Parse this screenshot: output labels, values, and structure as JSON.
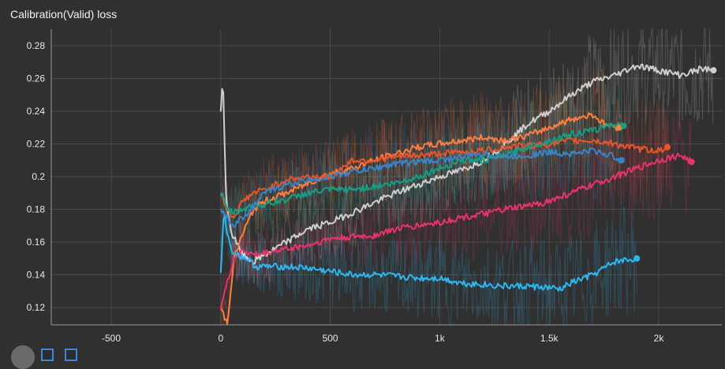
{
  "chart_data": {
    "title": "Calibration(Valid) loss",
    "type": "line",
    "xlim": [
      -750,
      2300
    ],
    "ylim": [
      0.11,
      0.29
    ],
    "x_ticks": [
      -500,
      0,
      500,
      1000,
      1500,
      2000
    ],
    "x_tick_labels": [
      "-500",
      "0",
      "500",
      "1k",
      "1.5k",
      "2k"
    ],
    "y_ticks": [
      0.12,
      0.14,
      0.16,
      0.18,
      0.2,
      0.22,
      0.24,
      0.26,
      0.28
    ],
    "y_tick_labels": [
      "0.12",
      "0.14",
      "0.16",
      "0.18",
      "0.2",
      "0.22",
      "0.24",
      "0.26",
      "0.28"
    ],
    "grid": true,
    "series": [
      {
        "color": "#cfcfcf",
        "end_marker": true,
        "x": [
          0,
          10,
          25,
          50,
          100,
          150,
          200,
          300,
          400,
          500,
          600,
          700,
          800,
          900,
          1000,
          1100,
          1200,
          1300,
          1400,
          1500,
          1600,
          1700,
          1800,
          1900,
          2000,
          2100,
          2200,
          2250
        ],
        "y": [
          0.24,
          0.26,
          0.185,
          0.165,
          0.152,
          0.148,
          0.152,
          0.16,
          0.168,
          0.172,
          0.178,
          0.184,
          0.19,
          0.195,
          0.2,
          0.204,
          0.21,
          0.22,
          0.232,
          0.24,
          0.25,
          0.258,
          0.262,
          0.268,
          0.265,
          0.262,
          0.266,
          0.265
        ]
      },
      {
        "color": "#ff7f40",
        "end_marker": true,
        "x": [
          0,
          30,
          60,
          100,
          150,
          200,
          300,
          400,
          500,
          600,
          700,
          800,
          900,
          1000,
          1100,
          1200,
          1300,
          1400,
          1500,
          1600,
          1700,
          1750,
          1820
        ],
        "y": [
          0.12,
          0.11,
          0.15,
          0.165,
          0.18,
          0.185,
          0.19,
          0.196,
          0.202,
          0.205,
          0.21,
          0.214,
          0.218,
          0.22,
          0.222,
          0.224,
          0.222,
          0.225,
          0.23,
          0.235,
          0.238,
          0.232,
          0.23
        ]
      },
      {
        "color": "#e8552a",
        "end_marker": true,
        "x": [
          0,
          30,
          60,
          100,
          150,
          200,
          300,
          400,
          500,
          600,
          700,
          800,
          900,
          1000,
          1100,
          1200,
          1300,
          1400,
          1500,
          1600,
          1700,
          1800,
          1900,
          2000,
          2040
        ],
        "y": [
          0.19,
          0.18,
          0.175,
          0.185,
          0.19,
          0.192,
          0.198,
          0.2,
          0.2,
          0.21,
          0.21,
          0.212,
          0.213,
          0.214,
          0.215,
          0.216,
          0.218,
          0.219,
          0.22,
          0.222,
          0.222,
          0.22,
          0.217,
          0.216,
          0.218
        ]
      },
      {
        "color": "#14a085",
        "end_marker": true,
        "x": [
          0,
          30,
          60,
          100,
          150,
          200,
          300,
          400,
          500,
          600,
          700,
          800,
          900,
          1000,
          1100,
          1200,
          1300,
          1400,
          1500,
          1600,
          1700,
          1780,
          1840
        ],
        "y": [
          0.19,
          0.18,
          0.178,
          0.18,
          0.182,
          0.183,
          0.186,
          0.19,
          0.192,
          0.192,
          0.194,
          0.196,
          0.2,
          0.205,
          0.21,
          0.21,
          0.213,
          0.218,
          0.222,
          0.226,
          0.228,
          0.232,
          0.231
        ]
      },
      {
        "color": "#3a85c8",
        "end_marker": true,
        "x": [
          0,
          30,
          60,
          100,
          150,
          200,
          300,
          400,
          500,
          600,
          700,
          800,
          900,
          1000,
          1100,
          1200,
          1300,
          1400,
          1500,
          1600,
          1700,
          1800,
          1830
        ],
        "y": [
          0.18,
          0.175,
          0.17,
          0.175,
          0.182,
          0.19,
          0.195,
          0.198,
          0.2,
          0.203,
          0.205,
          0.208,
          0.209,
          0.21,
          0.212,
          0.214,
          0.212,
          0.213,
          0.215,
          0.214,
          0.216,
          0.212,
          0.21
        ]
      },
      {
        "color": "#e8336b",
        "end_marker": true,
        "x": [
          0,
          30,
          60,
          100,
          150,
          200,
          300,
          400,
          500,
          600,
          700,
          800,
          900,
          1000,
          1100,
          1200,
          1300,
          1400,
          1500,
          1600,
          1700,
          1800,
          1900,
          2000,
          2100,
          2150
        ],
        "y": [
          0.12,
          0.135,
          0.15,
          0.155,
          0.152,
          0.153,
          0.156,
          0.158,
          0.162,
          0.163,
          0.164,
          0.168,
          0.17,
          0.172,
          0.175,
          0.177,
          0.18,
          0.182,
          0.185,
          0.19,
          0.195,
          0.2,
          0.205,
          0.21,
          0.213,
          0.209
        ]
      },
      {
        "color": "#2fb7f0",
        "end_marker": true,
        "x": [
          0,
          15,
          30,
          50,
          80,
          120,
          160,
          200,
          300,
          400,
          500,
          600,
          700,
          800,
          900,
          1000,
          1100,
          1200,
          1300,
          1400,
          1500,
          1550,
          1600,
          1700,
          1800,
          1900
        ],
        "y": [
          0.14,
          0.18,
          0.165,
          0.155,
          0.152,
          0.15,
          0.145,
          0.145,
          0.145,
          0.144,
          0.142,
          0.14,
          0.14,
          0.139,
          0.138,
          0.138,
          0.135,
          0.134,
          0.133,
          0.133,
          0.132,
          0.131,
          0.135,
          0.14,
          0.148,
          0.15
        ]
      }
    ]
  }
}
